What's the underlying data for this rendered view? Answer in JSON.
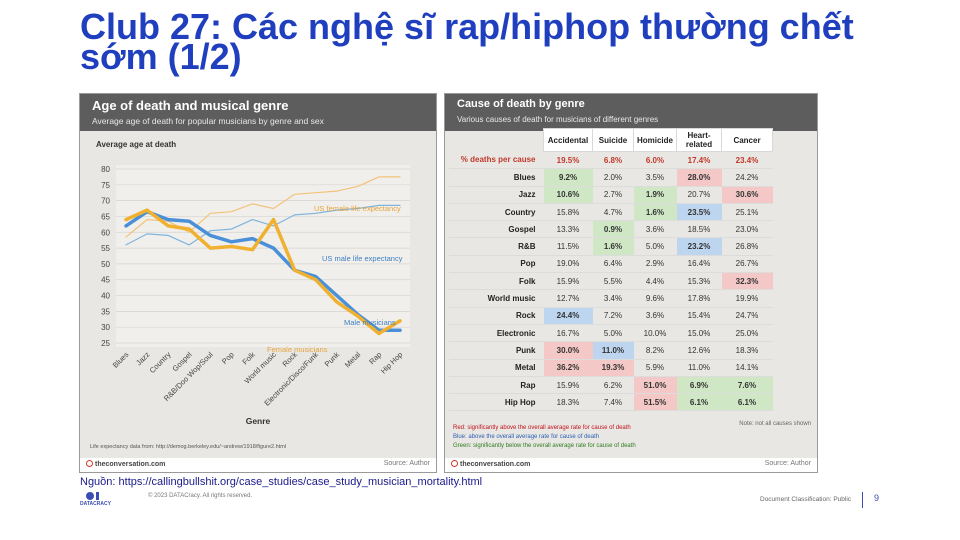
{
  "slide": {
    "title": "Club 27: Các nghệ sĩ rap/hiphop thường chết sớm (1/2)",
    "source": "Nguồn: https://callingbullshit.org/case_studies/case_study_musician_mortality.html",
    "copyright": "© 2023 DATACracy. All rights reserved.",
    "logo_text": "DATACRACY",
    "classification": "Document Classification: Public",
    "page_number": "9"
  },
  "left_chart": {
    "title": "Age of death and musical genre",
    "subtitle": "Average age of death for popular musicians by genre and sex",
    "ylabel": "Average age at death",
    "xlabel": "Genre",
    "footnote": "Life expectancy data from: http://demog.berkeley.edu/~andrew/1918/figure2.html",
    "brand": "theconversation.com",
    "source": "Source: Author",
    "annotations": {
      "us_female": "US female life expectancy",
      "us_male": "US male life expectancy",
      "male_musicians": "Male musicians",
      "female_musicians": "Female musicians"
    }
  },
  "right_table": {
    "title": "Cause of death by genre",
    "subtitle": "Various causes of death for musicians of different genres",
    "columns": [
      "Accidental",
      "Suicide",
      "Homicide",
      "Heart-related",
      "Cancer"
    ],
    "pct_row_label": "% deaths per cause",
    "pct_row": [
      "19.5%",
      "6.8%",
      "6.0%",
      "17.4%",
      "23.4%"
    ],
    "rows": [
      {
        "genre": "Blues",
        "values": [
          "9.2%",
          "2.0%",
          "3.5%",
          "28.0%",
          "24.2%"
        ],
        "flags": [
          "g",
          "",
          "",
          "r",
          ""
        ]
      },
      {
        "genre": "Jazz",
        "values": [
          "10.6%",
          "2.7%",
          "1.9%",
          "20.7%",
          "30.6%"
        ],
        "flags": [
          "g",
          "",
          "g",
          "",
          "r"
        ]
      },
      {
        "genre": "Country",
        "values": [
          "15.8%",
          "4.7%",
          "1.6%",
          "23.5%",
          "25.1%"
        ],
        "flags": [
          "",
          "",
          "g",
          "b",
          ""
        ]
      },
      {
        "genre": "Gospel",
        "values": [
          "13.3%",
          "0.9%",
          "3.6%",
          "18.5%",
          "23.0%"
        ],
        "flags": [
          "",
          "g",
          "",
          "",
          ""
        ]
      },
      {
        "genre": "R&B",
        "values": [
          "11.5%",
          "1.6%",
          "5.0%",
          "23.2%",
          "26.8%"
        ],
        "flags": [
          "",
          "g",
          "",
          "b",
          ""
        ]
      },
      {
        "genre": "Pop",
        "values": [
          "19.0%",
          "6.4%",
          "2.9%",
          "16.4%",
          "26.7%"
        ],
        "flags": [
          "",
          "",
          "",
          "",
          ""
        ]
      },
      {
        "genre": "Folk",
        "values": [
          "15.9%",
          "5.5%",
          "4.4%",
          "15.3%",
          "32.3%"
        ],
        "flags": [
          "",
          "",
          "",
          "",
          "r"
        ]
      },
      {
        "genre": "World music",
        "values": [
          "12.7%",
          "3.4%",
          "9.6%",
          "17.8%",
          "19.9%"
        ],
        "flags": [
          "",
          "",
          "",
          "",
          ""
        ]
      },
      {
        "genre": "Rock",
        "values": [
          "24.4%",
          "7.2%",
          "3.6%",
          "15.4%",
          "24.7%"
        ],
        "flags": [
          "b",
          "",
          "",
          "",
          ""
        ]
      },
      {
        "genre": "Electronic",
        "values": [
          "16.7%",
          "5.0%",
          "10.0%",
          "15.0%",
          "25.0%"
        ],
        "flags": [
          "",
          "",
          "",
          "",
          ""
        ]
      },
      {
        "genre": "Punk",
        "values": [
          "30.0%",
          "11.0%",
          "8.2%",
          "12.6%",
          "18.3%"
        ],
        "flags": [
          "r",
          "b",
          "",
          "",
          ""
        ]
      },
      {
        "genre": "Metal",
        "values": [
          "36.2%",
          "19.3%",
          "5.9%",
          "11.0%",
          "14.1%"
        ],
        "flags": [
          "r",
          "r",
          "",
          "",
          ""
        ]
      },
      {
        "genre": "Rap",
        "values": [
          "15.9%",
          "6.2%",
          "51.0%",
          "6.9%",
          "7.6%"
        ],
        "flags": [
          "",
          "",
          "r",
          "g",
          "g"
        ]
      },
      {
        "genre": "Hip Hop",
        "values": [
          "18.3%",
          "7.4%",
          "51.5%",
          "6.1%",
          "6.1%"
        ],
        "flags": [
          "",
          "",
          "r",
          "g",
          "g"
        ]
      }
    ],
    "legend": {
      "red": "Red: significantly above the overall average rate for cause of death",
      "blue": "Blue: above the overall average rate for cause of death",
      "green": "Green: significantly below the overall average rate for cause of death"
    },
    "note": "Note: not all causes shown",
    "brand": "theconversation.com",
    "source": "Source: Author"
  },
  "chart_data": {
    "type": "line",
    "title": "Age of death and musical genre",
    "subtitle": "Average age of death for popular musicians by genre and sex",
    "xlabel": "Genre",
    "ylabel": "Average age at death",
    "categories": [
      "Blues",
      "Jazz",
      "Country",
      "Gospel",
      "R&B/Doo Wop/Soul",
      "Pop",
      "Folk",
      "World music",
      "Rock",
      "Electronic/Disco/Funk",
      "Punk",
      "Metal",
      "Rap",
      "Hip Hop"
    ],
    "ylim": [
      25,
      80
    ],
    "yticks": [
      25,
      30,
      35,
      40,
      45,
      50,
      55,
      60,
      65,
      70,
      75,
      80
    ],
    "series": [
      {
        "name": "Male musicians",
        "color": "#4a90d9",
        "values": [
          62,
          66.5,
          64,
          63.5,
          59,
          57,
          58,
          55,
          48,
          46,
          40,
          34,
          29,
          29
        ]
      },
      {
        "name": "Female musicians",
        "color": "#f0b030",
        "values": [
          64,
          67,
          62,
          61,
          55,
          55.5,
          54.5,
          64,
          48,
          45,
          38,
          33.5,
          28,
          32
        ]
      },
      {
        "name": "US male life expectancy",
        "color": "#7eb4de",
        "values": [
          56,
          59.5,
          59,
          56,
          60.5,
          61,
          64,
          62,
          65.5,
          66,
          67,
          67.5,
          68.5,
          68.5
        ]
      },
      {
        "name": "US female life expectancy",
        "color": "#f2c27a",
        "values": [
          58.5,
          64,
          63.5,
          60,
          66,
          66.5,
          69,
          67.5,
          72,
          72.5,
          73,
          74.5,
          77.5,
          77.5
        ]
      }
    ],
    "grid": true
  }
}
